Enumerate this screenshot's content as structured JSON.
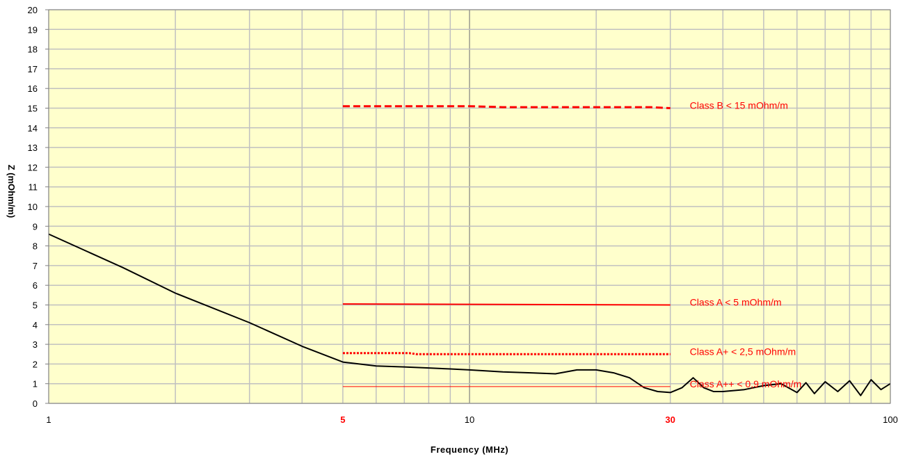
{
  "chart_data": {
    "type": "line",
    "xlabel": "Frequency (MHz)",
    "ylabel": "Z (mOhm/m)",
    "xscale": "log",
    "xlim": [
      1,
      100
    ],
    "ylim": [
      0,
      20
    ],
    "grid": true,
    "colors": {
      "plot_background": "#ffffcc",
      "grid": "#c0c0c0",
      "measured": "#000000",
      "limits": "#ff0000"
    },
    "x_ticks": [
      {
        "value": 1,
        "label": "1",
        "highlight": false
      },
      {
        "value": 5,
        "label": "5",
        "highlight": true
      },
      {
        "value": 10,
        "label": "10",
        "highlight": false
      },
      {
        "value": 30,
        "label": "30",
        "highlight": true
      },
      {
        "value": 100,
        "label": "100",
        "highlight": false
      }
    ],
    "y_ticks": [
      "0",
      "1",
      "2",
      "3",
      "4",
      "5",
      "6",
      "7",
      "8",
      "9",
      "10",
      "11",
      "12",
      "13",
      "14",
      "15",
      "16",
      "17",
      "18",
      "19",
      "20"
    ],
    "series": [
      {
        "style": "solid",
        "color": "#000000",
        "x": [
          1,
          1.5,
          2,
          3,
          4,
          5,
          6,
          7,
          8,
          9,
          10,
          12,
          14,
          16,
          18,
          20,
          22,
          24,
          26,
          28,
          30,
          32,
          34,
          36,
          38,
          40,
          45,
          50,
          55,
          60,
          63,
          66,
          70,
          75,
          80,
          85,
          90,
          95,
          100
        ],
        "y": [
          8.6,
          6.9,
          5.6,
          4.1,
          2.9,
          2.1,
          1.9,
          1.85,
          1.8,
          1.75,
          1.7,
          1.6,
          1.55,
          1.5,
          1.7,
          1.7,
          1.55,
          1.3,
          0.8,
          0.6,
          0.55,
          0.8,
          1.3,
          0.8,
          0.6,
          0.6,
          0.7,
          0.9,
          1.0,
          0.55,
          1.05,
          0.5,
          1.1,
          0.6,
          1.15,
          0.4,
          1.2,
          0.7,
          1.0
        ]
      },
      {
        "label": "Class B < 15 mOhm/m",
        "style": "dashed",
        "color": "#ff0000",
        "x": [
          5,
          10,
          12,
          27,
          30
        ],
        "y": [
          15.1,
          15.1,
          15.05,
          15.05,
          15.0
        ]
      },
      {
        "label": "Class A < 5 mOhm/m",
        "style": "solid",
        "color": "#ff0000",
        "x": [
          5,
          30
        ],
        "y": [
          5.05,
          5.0
        ]
      },
      {
        "label": "Class A+ < 2,5 mOhm/m",
        "style": "dotted",
        "color": "#ff0000",
        "x": [
          5,
          7.2,
          7.5,
          30
        ],
        "y": [
          2.55,
          2.55,
          2.5,
          2.5
        ]
      },
      {
        "label": "Class A++ < 0,9 mOhm/m",
        "style": "thin",
        "color": "#ff0000",
        "x": [
          5,
          30
        ],
        "y": [
          0.85,
          0.85
        ]
      }
    ]
  }
}
